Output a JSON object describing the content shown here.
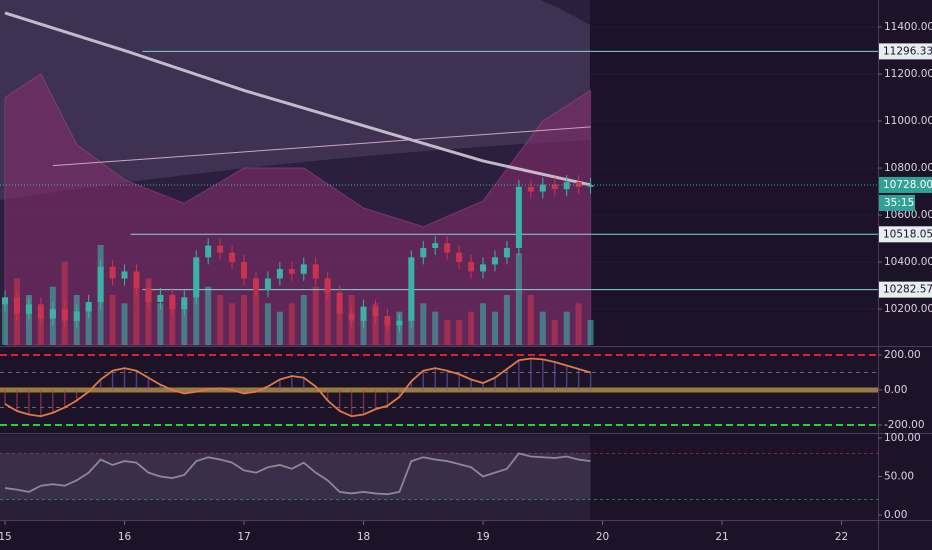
{
  "chart_data": [
    {
      "type": "candlestick",
      "x": [
        15,
        15.1,
        15.2,
        15.3,
        15.4,
        15.5,
        15.6,
        15.7,
        15.8,
        15.9,
        16,
        16.1,
        16.2,
        16.3,
        16.4,
        16.5,
        16.6,
        16.7,
        16.8,
        16.9,
        17,
        17.1,
        17.2,
        17.3,
        17.4,
        17.5,
        17.6,
        17.7,
        17.8,
        17.9,
        18,
        18.1,
        18.2,
        18.3,
        18.4,
        18.5,
        18.6,
        18.7,
        18.8,
        18.9,
        19,
        19.1,
        19.2,
        19.3,
        19.4,
        19.5,
        19.6,
        19.7,
        19.8,
        19.9
      ],
      "open": [
        10220,
        10250,
        10180,
        10220,
        10160,
        10200,
        10150,
        10190,
        10230,
        10380,
        10330,
        10360,
        10290,
        10230,
        10260,
        10200,
        10250,
        10420,
        10470,
        10440,
        10400,
        10330,
        10280,
        10330,
        10370,
        10350,
        10390,
        10330,
        10270,
        10180,
        10150,
        10210,
        10170,
        10130,
        10150,
        10420,
        10460,
        10480,
        10440,
        10400,
        10360,
        10390,
        10420,
        10460,
        10720,
        10700,
        10730,
        10710,
        10740,
        10720
      ],
      "high": [
        10280,
        10280,
        10250,
        10250,
        10230,
        10230,
        10220,
        10260,
        10410,
        10410,
        10390,
        10390,
        10320,
        10290,
        10290,
        10280,
        10450,
        10500,
        10500,
        10470,
        10430,
        10360,
        10360,
        10400,
        10400,
        10420,
        10420,
        10360,
        10300,
        10210,
        10240,
        10240,
        10200,
        10180,
        10450,
        10490,
        10510,
        10510,
        10470,
        10430,
        10420,
        10450,
        10490,
        10750,
        10750,
        10760,
        10760,
        10770,
        10770,
        10758
      ],
      "low": [
        10190,
        10150,
        10150,
        10130,
        10130,
        10120,
        10120,
        10160,
        10200,
        10300,
        10300,
        10260,
        10200,
        10200,
        10170,
        10170,
        10220,
        10390,
        10410,
        10370,
        10300,
        10250,
        10250,
        10300,
        10320,
        10320,
        10300,
        10240,
        10150,
        10120,
        10120,
        10140,
        10100,
        10100,
        10120,
        10390,
        10430,
        10410,
        10370,
        10330,
        10330,
        10360,
        10390,
        10430,
        10670,
        10670,
        10680,
        10680,
        10690,
        10690
      ],
      "close": [
        10250,
        10180,
        10220,
        10160,
        10200,
        10150,
        10190,
        10230,
        10380,
        10330,
        10360,
        10290,
        10230,
        10260,
        10200,
        10250,
        10420,
        10470,
        10440,
        10400,
        10330,
        10280,
        10330,
        10370,
        10350,
        10390,
        10330,
        10270,
        10180,
        10150,
        10210,
        10170,
        10130,
        10150,
        10420,
        10460,
        10480,
        10440,
        10400,
        10360,
        10390,
        10420,
        10460,
        10720,
        10700,
        10730,
        10710,
        10740,
        10720,
        10728
      ],
      "volume": [
        5,
        8,
        6,
        4,
        7,
        10,
        6,
        5,
        12,
        6,
        5,
        7,
        8,
        5,
        6,
        5,
        9,
        7,
        6,
        5,
        6,
        8,
        5,
        4,
        5,
        6,
        7,
        8,
        5,
        6,
        4,
        5,
        3,
        4,
        7,
        5,
        4,
        3,
        3,
        4,
        5,
        4,
        6,
        11,
        6,
        4,
        3,
        4,
        5,
        3
      ],
      "up_color": "#3bb3a4",
      "down_color": "#c8344f",
      "ma_long": {
        "x": [
          15,
          16,
          17,
          18,
          19,
          19.9
        ],
        "values": [
          11460,
          11300,
          11130,
          10980,
          10830,
          10728
        ],
        "color": "#d9d4de"
      },
      "ma_mid": {
        "x": [
          15.4,
          19.9
        ],
        "values": [
          10810,
          10975
        ],
        "color": "#c9a6bf"
      },
      "band_upper": {
        "x": [
          15,
          15.3,
          15.6,
          16,
          16.5,
          17,
          17.5,
          18,
          18.5,
          19,
          19.5,
          19.9
        ],
        "values": [
          11100,
          11200,
          10900,
          10750,
          10650,
          10800,
          10800,
          10630,
          10550,
          10660,
          11000,
          11130
        ],
        "color": "#8a2f6e"
      },
      "levels": [
        {
          "value": 11296.33,
          "x_start": 16.15
        },
        {
          "value": 10518.05,
          "x_start": 16.05
        },
        {
          "value": 10282.57,
          "x_start": 16.15
        }
      ],
      "last_price": {
        "value": 10728,
        "label": "10728.00"
      },
      "countdown": "35:15",
      "xlim": [
        14.958,
        22.305
      ],
      "xticks": [
        15,
        16,
        17,
        18,
        19,
        20,
        21,
        22
      ],
      "ylim": [
        10047,
        11515
      ],
      "yticks": [
        {
          "value": 10200,
          "label": "10200.00"
        },
        {
          "value": 10400,
          "label": "10400.00"
        },
        {
          "value": 10600,
          "label": "10600.00"
        },
        {
          "value": 10800,
          "label": "10800.00"
        },
        {
          "value": 11000,
          "label": "11000.00"
        },
        {
          "value": 11200,
          "label": "11200.00"
        },
        {
          "value": 11400,
          "label": "11400.00"
        }
      ]
    },
    {
      "type": "line",
      "values": [
        -80,
        -120,
        -140,
        -150,
        -130,
        -100,
        -60,
        -10,
        60,
        110,
        125,
        110,
        70,
        30,
        0,
        -20,
        -10,
        5,
        10,
        0,
        -20,
        -10,
        20,
        60,
        80,
        70,
        20,
        -60,
        -120,
        -150,
        -140,
        -110,
        -90,
        -40,
        50,
        110,
        125,
        110,
        90,
        60,
        40,
        70,
        120,
        170,
        180,
        175,
        160,
        140,
        120,
        100
      ],
      "color": "#e07b45",
      "ylim": [
        -240,
        240
      ],
      "yticks": [
        {
          "value": 200,
          "label": "200.00"
        },
        {
          "value": 0,
          "label": "0.00"
        },
        {
          "value": -200,
          "label": "-200.00"
        }
      ],
      "guides": [
        100,
        -100
      ]
    },
    {
      "type": "line",
      "values": [
        35,
        33,
        30,
        38,
        40,
        38,
        45,
        55,
        72,
        65,
        70,
        68,
        55,
        50,
        48,
        52,
        70,
        75,
        72,
        68,
        58,
        55,
        62,
        65,
        60,
        68,
        55,
        45,
        30,
        28,
        30,
        28,
        27,
        30,
        70,
        75,
        72,
        70,
        66,
        62,
        50,
        55,
        60,
        80,
        76,
        75,
        74,
        76,
        72,
        70
      ],
      "color": "#8d8796",
      "band": [
        20,
        80
      ],
      "ylim": [
        -6.5,
        103.9
      ],
      "yticks": [
        {
          "value": 100,
          "label": "100.00"
        },
        {
          "value": 50,
          "label": "50.00"
        },
        {
          "value": 0,
          "label": "0.00"
        }
      ]
    }
  ]
}
